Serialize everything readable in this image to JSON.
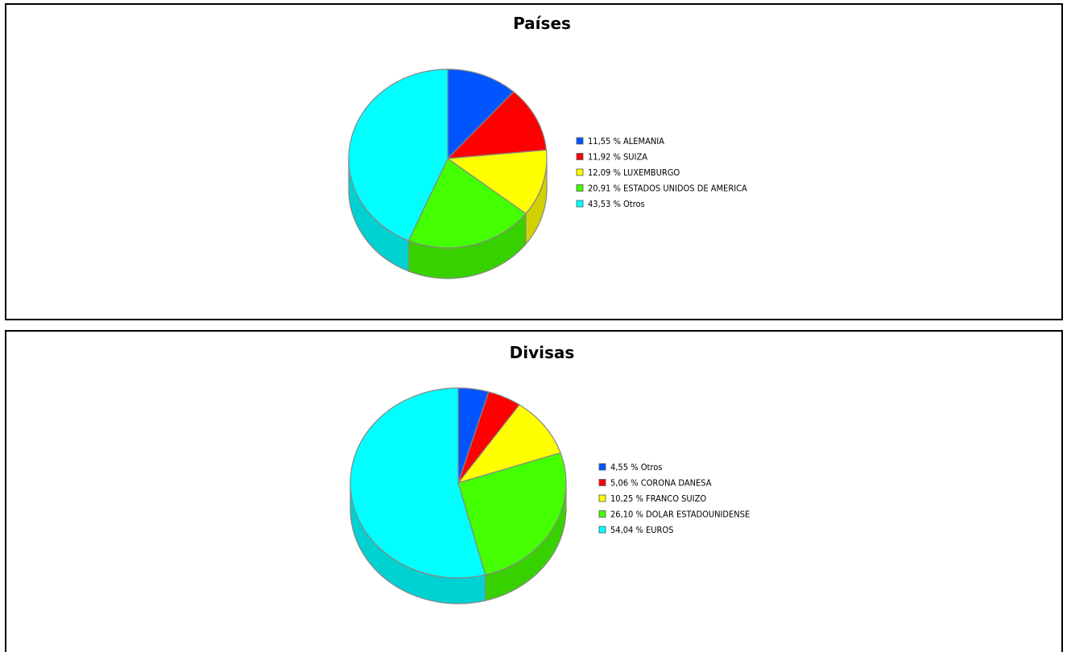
{
  "chart_data": [
    {
      "type": "pie",
      "title": "Países",
      "legend_position": "right",
      "three_d": true,
      "slices": [
        {
          "label": "ALEMANIA",
          "value": 11.55,
          "legend": "11,55 % ALEMANIA",
          "color": "#0055ff"
        },
        {
          "label": "SUIZA",
          "value": 11.92,
          "legend": "11,92 % SUIZA",
          "color": "#ff0000"
        },
        {
          "label": "LUXEMBURGO",
          "value": 12.09,
          "legend": "12,09 % LUXEMBURGO",
          "color": "#ffff00"
        },
        {
          "label": "ESTADOS UNIDOS DE AMERICA",
          "value": 20.91,
          "legend": "20,91 % ESTADOS UNIDOS DE AMERICA",
          "color": "#44ff00"
        },
        {
          "label": "Otros",
          "value": 43.53,
          "legend": "43,53 % Otros",
          "color": "#00ffff"
        }
      ]
    },
    {
      "type": "pie",
      "title": "Divisas",
      "legend_position": "right",
      "three_d": true,
      "slices": [
        {
          "label": "Otros",
          "value": 4.55,
          "legend": "4,55 % Otros",
          "color": "#0055ff"
        },
        {
          "label": "CORONA DANESA",
          "value": 5.06,
          "legend": "5,06 % CORONA DANESA",
          "color": "#ff0000"
        },
        {
          "label": "FRANCO SUIZO",
          "value": 10.25,
          "legend": "10,25 % FRANCO SUIZO",
          "color": "#ffff00"
        },
        {
          "label": "DOLAR ESTADOUNIDENSE",
          "value": 26.1,
          "legend": "26,10 % DOLAR ESTADOUNIDENSE",
          "color": "#44ff00"
        },
        {
          "label": "EUROS",
          "value": 54.04,
          "legend": "54,04 % EUROS",
          "color": "#00ffff"
        }
      ]
    }
  ]
}
